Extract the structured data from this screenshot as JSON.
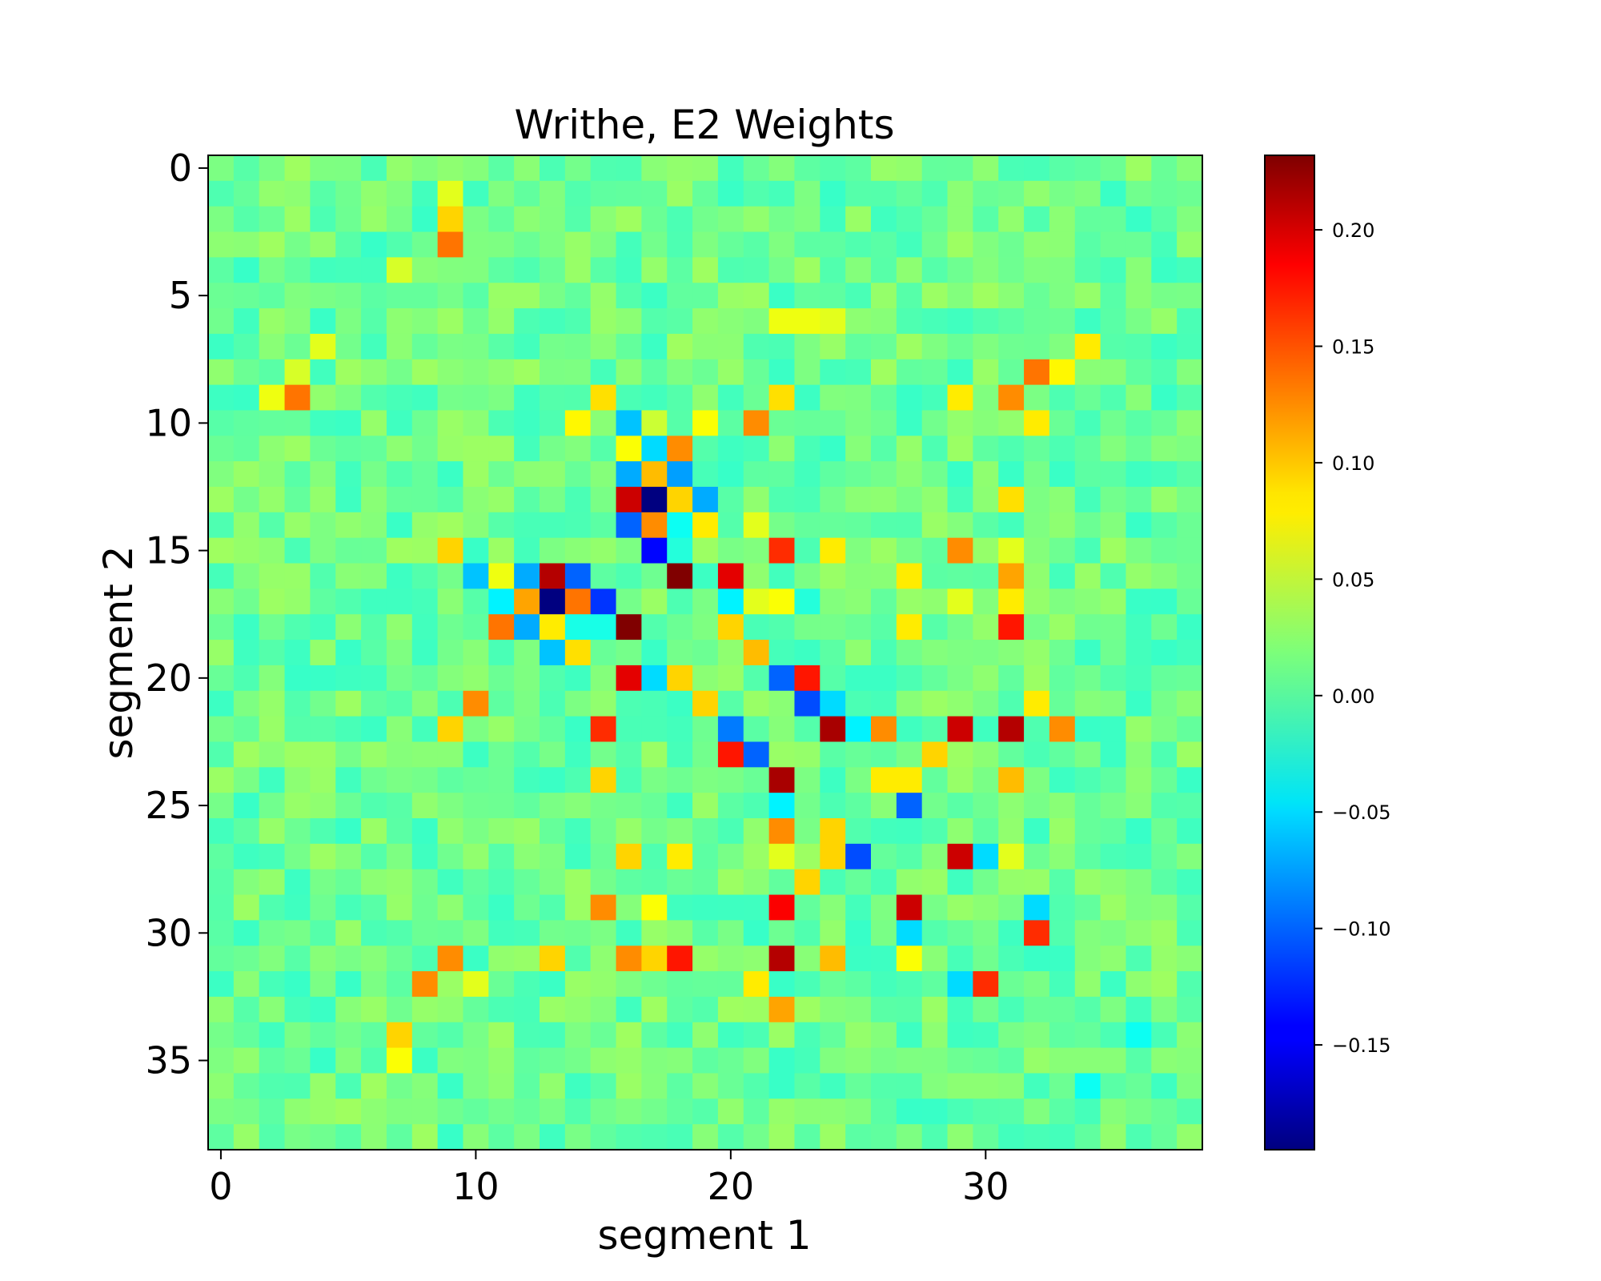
{
  "chart_data": {
    "type": "heatmap",
    "title": "Writhe, E2 Weights",
    "xlabel": "segment 1",
    "ylabel": "segment 2",
    "xticks": [
      0,
      10,
      20,
      30
    ],
    "yticks": [
      0,
      5,
      10,
      15,
      20,
      25,
      30,
      35
    ],
    "xlim": [
      -0.5,
      38.5
    ],
    "ylim": [
      38.5,
      -0.5
    ],
    "n_rows": 39,
    "n_cols": 39,
    "colormap": "jet",
    "colorbar": {
      "vmin": -0.195,
      "vmax": 0.232,
      "ticks": [
        0.2,
        0.15,
        0.1,
        0.05,
        0.0,
        -0.05,
        -0.1,
        -0.15
      ],
      "tick_labels": [
        "0.20",
        "0.15",
        "0.10",
        "0.05",
        "0.00",
        "−0.05",
        "−0.10",
        "−0.15"
      ]
    },
    "background_value": 0.01,
    "noise_amplitude": 0.022,
    "cells": [
      [
        1,
        9,
        0.06
      ],
      [
        2,
        9,
        0.09
      ],
      [
        3,
        9,
        0.13
      ],
      [
        4,
        7,
        0.055
      ],
      [
        8,
        3,
        0.055
      ],
      [
        9,
        2,
        0.065
      ],
      [
        9,
        3,
        0.13
      ],
      [
        7,
        4,
        0.06
      ],
      [
        8,
        32,
        0.13
      ],
      [
        8,
        33,
        0.075
      ],
      [
        7,
        34,
        0.08
      ],
      [
        9,
        29,
        0.08
      ],
      [
        9,
        31,
        0.12
      ],
      [
        10,
        32,
        0.08
      ],
      [
        6,
        23,
        0.065
      ],
      [
        6,
        22,
        0.065
      ],
      [
        6,
        24,
        0.06
      ],
      [
        9,
        15,
        0.085
      ],
      [
        9,
        22,
        0.085
      ],
      [
        10,
        14,
        0.075
      ],
      [
        10,
        16,
        -0.06
      ],
      [
        10,
        17,
        0.05
      ],
      [
        10,
        19,
        0.07
      ],
      [
        10,
        21,
        0.12
      ],
      [
        11,
        16,
        0.07
      ],
      [
        11,
        17,
        -0.05
      ],
      [
        11,
        18,
        0.12
      ],
      [
        12,
        16,
        -0.07
      ],
      [
        12,
        17,
        0.1
      ],
      [
        12,
        18,
        -0.075
      ],
      [
        13,
        16,
        0.2
      ],
      [
        13,
        17,
        -0.195
      ],
      [
        13,
        18,
        0.09
      ],
      [
        13,
        19,
        -0.07
      ],
      [
        13,
        31,
        0.085
      ],
      [
        14,
        16,
        -0.1
      ],
      [
        14,
        17,
        0.12
      ],
      [
        14,
        18,
        -0.03
      ],
      [
        14,
        19,
        0.08
      ],
      [
        14,
        21,
        0.06
      ],
      [
        15,
        9,
        0.09
      ],
      [
        15,
        17,
        -0.14
      ],
      [
        15,
        18,
        -0.02
      ],
      [
        15,
        22,
        0.16
      ],
      [
        15,
        24,
        0.08
      ],
      [
        15,
        29,
        0.12
      ],
      [
        15,
        31,
        0.06
      ],
      [
        16,
        10,
        -0.06
      ],
      [
        16,
        11,
        0.065
      ],
      [
        16,
        12,
        -0.07
      ],
      [
        16,
        13,
        0.21
      ],
      [
        16,
        14,
        -0.1
      ],
      [
        16,
        18,
        0.232
      ],
      [
        16,
        20,
        0.19
      ],
      [
        16,
        27,
        0.08
      ],
      [
        16,
        31,
        0.11
      ],
      [
        17,
        11,
        -0.04
      ],
      [
        17,
        12,
        0.11
      ],
      [
        17,
        13,
        -0.195
      ],
      [
        17,
        14,
        0.13
      ],
      [
        17,
        15,
        -0.12
      ],
      [
        17,
        20,
        -0.04
      ],
      [
        17,
        21,
        0.06
      ],
      [
        17,
        22,
        0.07
      ],
      [
        17,
        23,
        -0.02
      ],
      [
        17,
        29,
        0.06
      ],
      [
        17,
        31,
        0.08
      ],
      [
        18,
        11,
        0.13
      ],
      [
        18,
        12,
        -0.07
      ],
      [
        18,
        13,
        0.08
      ],
      [
        18,
        14,
        -0.025
      ],
      [
        18,
        15,
        -0.025
      ],
      [
        18,
        16,
        0.232
      ],
      [
        18,
        20,
        0.09
      ],
      [
        18,
        27,
        0.08
      ],
      [
        18,
        31,
        0.17
      ],
      [
        19,
        13,
        -0.06
      ],
      [
        19,
        14,
        0.085
      ],
      [
        19,
        21,
        0.1
      ],
      [
        20,
        16,
        0.19
      ],
      [
        20,
        17,
        -0.05
      ],
      [
        20,
        18,
        0.09
      ],
      [
        20,
        22,
        -0.1
      ],
      [
        20,
        23,
        0.17
      ],
      [
        20,
        25,
        -0.01
      ],
      [
        20,
        26,
        -0.01
      ],
      [
        21,
        10,
        0.12
      ],
      [
        21,
        19,
        0.09
      ],
      [
        21,
        23,
        -0.11
      ],
      [
        21,
        24,
        -0.05
      ],
      [
        21,
        32,
        0.08
      ],
      [
        22,
        9,
        0.09
      ],
      [
        22,
        15,
        0.16
      ],
      [
        22,
        20,
        -0.09
      ],
      [
        22,
        24,
        0.215
      ],
      [
        22,
        25,
        -0.04
      ],
      [
        22,
        26,
        0.12
      ],
      [
        22,
        29,
        0.2
      ],
      [
        22,
        31,
        0.21
      ],
      [
        22,
        33,
        0.12
      ],
      [
        23,
        20,
        0.17
      ],
      [
        23,
        21,
        -0.1
      ],
      [
        23,
        28,
        0.09
      ],
      [
        24,
        15,
        0.09
      ],
      [
        24,
        22,
        0.215
      ],
      [
        24,
        26,
        0.08
      ],
      [
        24,
        27,
        0.08
      ],
      [
        24,
        31,
        0.1
      ],
      [
        25,
        27,
        -0.1
      ],
      [
        25,
        22,
        -0.04
      ],
      [
        26,
        22,
        0.12
      ],
      [
        26,
        24,
        0.09
      ],
      [
        27,
        16,
        0.09
      ],
      [
        27,
        18,
        0.08
      ],
      [
        27,
        22,
        0.06
      ],
      [
        27,
        24,
        0.09
      ],
      [
        27,
        25,
        -0.11
      ],
      [
        27,
        29,
        0.2
      ],
      [
        27,
        30,
        -0.05
      ],
      [
        27,
        31,
        0.06
      ],
      [
        28,
        23,
        0.09
      ],
      [
        29,
        15,
        0.12
      ],
      [
        29,
        17,
        0.07
      ],
      [
        29,
        22,
        0.18
      ],
      [
        29,
        27,
        0.2
      ],
      [
        29,
        32,
        -0.05
      ],
      [
        30,
        27,
        -0.05
      ],
      [
        30,
        32,
        0.16
      ],
      [
        31,
        9,
        0.12
      ],
      [
        31,
        13,
        0.09
      ],
      [
        31,
        16,
        0.12
      ],
      [
        31,
        17,
        0.09
      ],
      [
        31,
        18,
        0.17
      ],
      [
        31,
        22,
        0.21
      ],
      [
        31,
        24,
        0.1
      ],
      [
        31,
        27,
        0.07
      ],
      [
        32,
        8,
        0.12
      ],
      [
        32,
        10,
        0.06
      ],
      [
        32,
        21,
        0.08
      ],
      [
        32,
        29,
        -0.05
      ],
      [
        32,
        30,
        0.16
      ],
      [
        33,
        22,
        0.11
      ],
      [
        34,
        7,
        0.09
      ],
      [
        35,
        7,
        0.07
      ],
      [
        34,
        36,
        -0.03
      ],
      [
        36,
        34,
        -0.03
      ]
    ]
  }
}
